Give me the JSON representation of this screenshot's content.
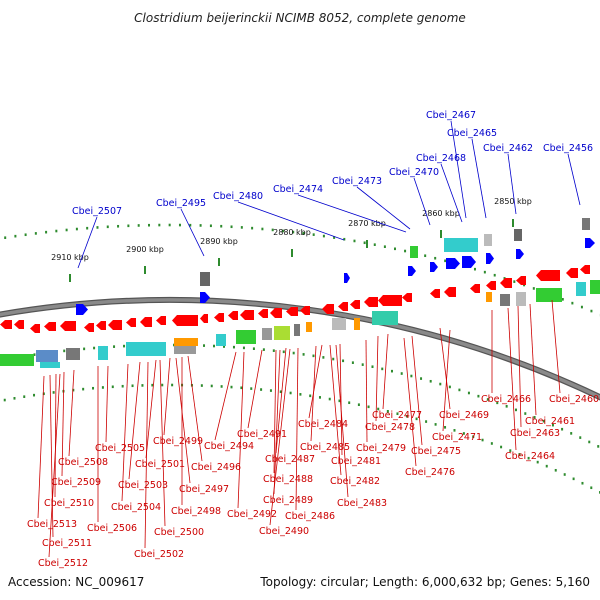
{
  "title": "Clostridium beijerinckii NCIMB 8052, complete genome",
  "footer": {
    "accession": "Accession: NC_009617",
    "topology": "Topology: circular; Length: 6,000,632 bp; Genes: 5,160"
  },
  "colors": {
    "backbone": "#8a8a8a",
    "forward_label": "#0000cc",
    "reverse_label": "#cc0000",
    "tick": "#2e8b2e",
    "gene_red": "#ff0000",
    "gene_blue": "#0000ff",
    "cds_green": "#33cc33",
    "cds_cyan": "#33cccc",
    "cds_orange": "#ff9900",
    "cds_gray": "#777777"
  },
  "ticks": [
    {
      "label": "2850 kbp"
    },
    {
      "label": "2860 kbp"
    },
    {
      "label": "2870 kbp"
    },
    {
      "label": "2880 kbp"
    },
    {
      "label": "2890 kbp"
    },
    {
      "label": "2900 kbp"
    },
    {
      "label": "2910 kbp"
    }
  ],
  "forward_labels": [
    "Cbei_2467",
    "Cbei_2465",
    "Cbei_2468",
    "Cbei_2462",
    "Cbei_2456",
    "Cbei_2470",
    "Cbei_2473",
    "Cbei_2474",
    "Cbei_2480",
    "Cbei_2495",
    "Cbei_2507"
  ],
  "reverse_labels": [
    "Cbei_2466",
    "Cbei_2460",
    "Cbei_2461",
    "Cbei_2463",
    "Cbei_2464",
    "Cbei_2469",
    "Cbei_2477",
    "Cbei_2478",
    "Cbei_2471",
    "Cbei_2475",
    "Cbei_2476",
    "Cbei_2479",
    "Cbei_2484",
    "Cbei_2485",
    "Cbei_2481",
    "Cbei_2482",
    "Cbei_2483",
    "Cbei_2486",
    "Cbei_2491",
    "Cbei_2487",
    "Cbei_2488",
    "Cbei_2489",
    "Cbei_2490",
    "Cbei_2494",
    "Cbei_2492",
    "Cbei_2499",
    "Cbei_2496",
    "Cbei_2497",
    "Cbei_2498",
    "Cbei_2500",
    "Cbei_2501",
    "Cbei_2502",
    "Cbei_2503",
    "Cbei_2504",
    "Cbei_2505",
    "Cbei_2506",
    "Cbei_2508",
    "Cbei_2509",
    "Cbei_2510",
    "Cbei_2513",
    "Cbei_2511",
    "Cbei_2512"
  ]
}
